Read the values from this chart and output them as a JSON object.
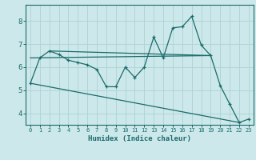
{
  "background_color": "#cde8ea",
  "grid_color": "#b0d4d8",
  "line_color": "#1a6b6b",
  "xlabel": "Humidex (Indice chaleur)",
  "xlim": [
    -0.5,
    23.5
  ],
  "ylim": [
    3.5,
    8.7
  ],
  "yticks": [
    4,
    5,
    6,
    7,
    8
  ],
  "xticks": [
    0,
    1,
    2,
    3,
    4,
    5,
    6,
    7,
    8,
    9,
    10,
    11,
    12,
    13,
    14,
    15,
    16,
    17,
    18,
    19,
    20,
    21,
    22,
    23
  ],
  "series": [
    [
      0,
      5.3
    ],
    [
      1,
      6.4
    ],
    [
      2,
      6.7
    ],
    [
      3,
      6.55
    ],
    [
      4,
      6.3
    ],
    [
      5,
      6.2
    ],
    [
      6,
      6.1
    ],
    [
      7,
      5.9
    ],
    [
      8,
      5.15
    ],
    [
      9,
      5.15
    ],
    [
      10,
      6.0
    ],
    [
      11,
      5.55
    ],
    [
      12,
      6.0
    ],
    [
      13,
      7.3
    ],
    [
      14,
      6.4
    ],
    [
      15,
      7.7
    ],
    [
      16,
      7.75
    ],
    [
      17,
      8.2
    ],
    [
      18,
      6.95
    ],
    [
      19,
      6.5
    ],
    [
      20,
      5.2
    ],
    [
      21,
      4.4
    ],
    [
      22,
      3.6
    ],
    [
      23,
      3.75
    ]
  ],
  "series2": [
    [
      2,
      6.7
    ],
    [
      19,
      6.5
    ]
  ],
  "series3": [
    [
      0,
      6.4
    ],
    [
      19,
      6.5
    ]
  ],
  "series4": [
    [
      0,
      5.3
    ],
    [
      22,
      3.6
    ]
  ]
}
